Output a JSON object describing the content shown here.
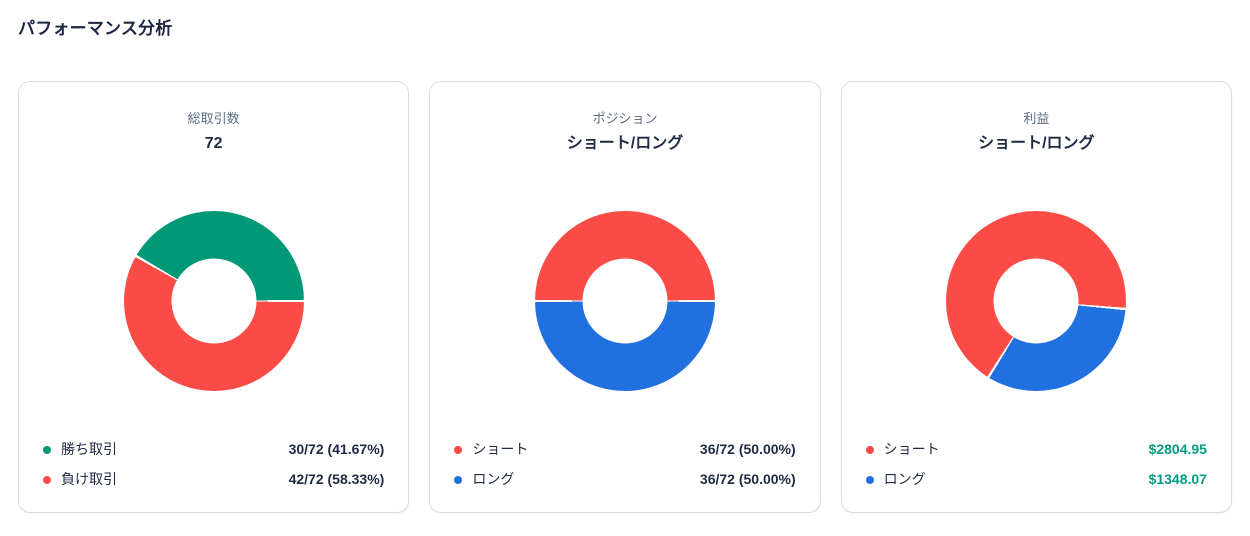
{
  "page_title": "パフォーマンス分析",
  "theme": {
    "background": "#ffffff",
    "card_border": "#d9dce3",
    "title_color": "#1b2642",
    "header_label_gray": "#5d6b80",
    "text_dark_navy": "#1f2a44",
    "win_green": "#009877",
    "loss_red": "#fa4b46",
    "long_blue": "#2070e0",
    "profit_value_green": "#089981"
  },
  "cards": [
    {
      "label": "総取引数",
      "value": "72",
      "legend": [
        {
          "name": "勝ち取引",
          "value": "30/72 (41.67%)",
          "value_color": "#1f2a44"
        },
        {
          "name": "負け取引",
          "value": "42/72 (58.33%)",
          "value_color": "#1f2a44"
        }
      ]
    },
    {
      "label": "ポジション",
      "value": "ショート/ロング",
      "legend": [
        {
          "name": "ショート",
          "value": "36/72 (50.00%)",
          "value_color": "#1f2a44"
        },
        {
          "name": "ロング",
          "value": "36/72 (50.00%)",
          "value_color": "#1f2a44"
        }
      ]
    },
    {
      "label": "利益",
      "value": "ショート/ロング",
      "legend": [
        {
          "name": "ショート",
          "value": "$2804.95",
          "value_color": "#089981"
        },
        {
          "name": "ロング",
          "value": "$1348.07",
          "value_color": "#089981"
        }
      ]
    }
  ],
  "chart_data": [
    {
      "type": "pie",
      "title": "総取引数 72",
      "labels": [
        "勝ち取引",
        "負け取引"
      ],
      "values": [
        30,
        42
      ],
      "total": 72,
      "percents": [
        41.67,
        58.33
      ],
      "colors": [
        "#009877",
        "#fa4b46"
      ],
      "rotation_deg": 300,
      "donut_hole_ratio": 0.47,
      "legend_position": "bottom"
    },
    {
      "type": "pie",
      "title": "ポジション ショート/ロング",
      "labels": [
        "ショート",
        "ロング"
      ],
      "values": [
        36,
        36
      ],
      "total": 72,
      "percents": [
        50.0,
        50.0
      ],
      "colors": [
        "#fa4b46",
        "#2070e0"
      ],
      "rotation_deg": 270,
      "donut_hole_ratio": 0.47,
      "legend_position": "bottom"
    },
    {
      "type": "pie",
      "title": "利益 ショート/ロング",
      "labels": [
        "ショート",
        "ロング"
      ],
      "values": [
        2804.95,
        1348.07
      ],
      "unit": "USD",
      "percents": [
        67.54,
        32.46
      ],
      "colors": [
        "#fa4b46",
        "#2070e0"
      ],
      "rotation_deg": 212,
      "donut_hole_ratio": 0.47,
      "legend_position": "bottom"
    }
  ]
}
